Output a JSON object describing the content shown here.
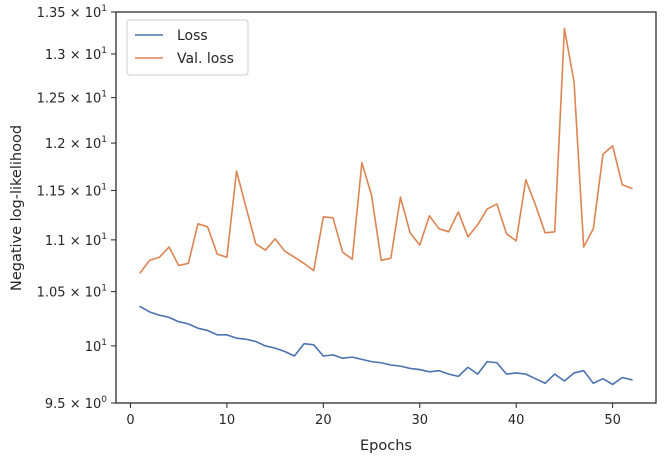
{
  "chart_data": {
    "type": "line",
    "title": "",
    "xlabel": "Epochs",
    "ylabel": "Negative log-likelihood",
    "xlim": [
      -1.5,
      54.5
    ],
    "ylim": [
      9.5,
      13.5
    ],
    "y_scale": "log",
    "grid": false,
    "legend_position": "top-left",
    "x_ticks": [
      0,
      10,
      20,
      30,
      40,
      50
    ],
    "x_tick_labels": [
      "0",
      "10",
      "20",
      "30",
      "40",
      "50"
    ],
    "y_ticks": [
      9.5,
      10,
      10.5,
      11,
      11.5,
      12,
      12.5,
      13,
      13.5
    ],
    "y_tick_labels": [
      {
        "mantissa": "9.5 × 10",
        "exp": "0"
      },
      {
        "mantissa": "10",
        "exp": "1"
      },
      {
        "mantissa": "1.05 × 10",
        "exp": "1"
      },
      {
        "mantissa": "1.1 × 10",
        "exp": "1"
      },
      {
        "mantissa": "1.15 × 10",
        "exp": "1"
      },
      {
        "mantissa": "1.2 × 10",
        "exp": "1"
      },
      {
        "mantissa": "1.25 × 10",
        "exp": "1"
      },
      {
        "mantissa": "1.3 × 10",
        "exp": "1"
      },
      {
        "mantissa": "1.35 × 10",
        "exp": "1"
      }
    ],
    "x": [
      1,
      2,
      3,
      4,
      5,
      6,
      7,
      8,
      9,
      10,
      11,
      12,
      13,
      14,
      15,
      16,
      17,
      18,
      19,
      20,
      21,
      22,
      23,
      24,
      25,
      26,
      27,
      28,
      29,
      30,
      31,
      32,
      33,
      34,
      35,
      36,
      37,
      38,
      39,
      40,
      41,
      42,
      43,
      44,
      45,
      46,
      47,
      48,
      49,
      50,
      51,
      52
    ],
    "series": [
      {
        "name": "Loss",
        "color": "#4c72b0",
        "values": [
          10.36,
          10.31,
          10.28,
          10.26,
          10.22,
          10.2,
          10.16,
          10.14,
          10.1,
          10.1,
          10.07,
          10.06,
          10.04,
          10.0,
          9.98,
          9.95,
          9.91,
          10.02,
          10.01,
          9.91,
          9.92,
          9.89,
          9.9,
          9.88,
          9.86,
          9.85,
          9.83,
          9.82,
          9.8,
          9.79,
          9.77,
          9.78,
          9.75,
          9.73,
          9.81,
          9.75,
          9.86,
          9.85,
          9.75,
          9.76,
          9.75,
          9.71,
          9.67,
          9.75,
          9.69,
          9.76,
          9.78,
          9.67,
          9.71,
          9.66,
          9.72,
          9.7
        ]
      },
      {
        "name": "Val. loss",
        "color": "#dd8452",
        "values": [
          10.68,
          10.8,
          10.83,
          10.93,
          10.75,
          10.77,
          11.16,
          11.13,
          10.86,
          10.83,
          11.7,
          11.32,
          10.96,
          10.9,
          11.01,
          10.89,
          10.83,
          10.77,
          10.7,
          11.23,
          11.22,
          10.88,
          10.81,
          11.79,
          11.45,
          10.8,
          10.82,
          11.43,
          11.07,
          10.95,
          11.24,
          11.11,
          11.08,
          11.28,
          11.03,
          11.15,
          11.31,
          11.36,
          11.06,
          10.99,
          11.61,
          11.35,
          11.07,
          11.08,
          13.3,
          12.68,
          10.93,
          11.11,
          11.88,
          11.97,
          11.56,
          11.52
        ]
      }
    ]
  }
}
